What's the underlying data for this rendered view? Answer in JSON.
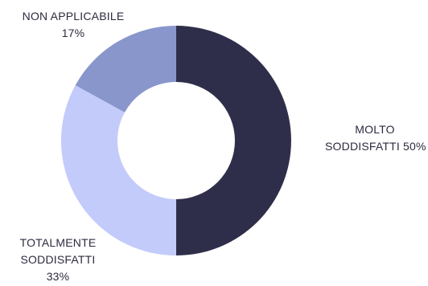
{
  "chart_data": {
    "type": "pie",
    "variant": "donut",
    "slices": [
      {
        "label": "MOLTO SODDISFATTI",
        "value": 50,
        "display": "50%",
        "color": "#2f2e4a"
      },
      {
        "label": "TOTALMENTE SODDISFATTI",
        "value": 33,
        "display": "33%",
        "color": "#c3cbfb"
      },
      {
        "label": "NON APPLICABILE",
        "value": 17,
        "display": "17%",
        "color": "#8896cc"
      }
    ]
  },
  "labels": {
    "non_applicabile": {
      "line1": "NON APPLICABILE",
      "line2": "17%"
    },
    "molto": {
      "line1": "MOLTO",
      "line2": "SODDISFATTI 50%"
    },
    "totalmente": {
      "line1": "TOTALMENTE",
      "line2": "SODDISFATTI",
      "line3": "33%"
    }
  }
}
